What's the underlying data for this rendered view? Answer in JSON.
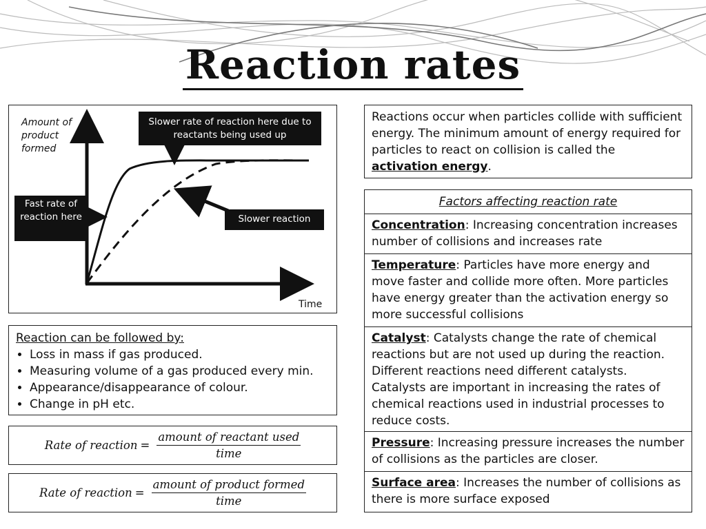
{
  "title": "Reaction rates",
  "graph": {
    "y_axis_label": "Amount of product formed",
    "x_axis_label": "Time",
    "callout_top": "Slower rate of reaction here due to reactants being used up",
    "callout_left": "Fast rate of reaction here",
    "callout_slower": "Slower reaction"
  },
  "intro": {
    "text": "Reactions occur when particles collide with sufficient energy. The minimum amount of energy required for particles to react on collision is called the ",
    "term": "activation energy",
    "end": "."
  },
  "factors": {
    "heading": "Factors affecting reaction rate",
    "items": [
      {
        "term": "Concentration",
        "text": ": Increasing concentration increases number of collisions and increases rate"
      },
      {
        "term": "Temperature",
        "text": ": Particles have more energy and move faster and collide more often. More particles have energy greater than the activation  energy so more successful collisions"
      },
      {
        "term": "Catalyst",
        "text": ": Catalysts change the rate of chemical reactions but are not used up during the reaction. Different reactions need different catalysts. Catalysts are important in increasing the rates of chemical reactions used in industrial processes to reduce costs."
      },
      {
        "term": "Pressure",
        "text": ": Increasing pressure increases the number of collisions as the particles are closer."
      },
      {
        "term": "Surface area",
        "text": ": Increases the number of collisions as there is more surface exposed"
      }
    ]
  },
  "followed": {
    "heading": "Reaction can be followed by:",
    "items": [
      "Loss in mass if gas produced.",
      "Measuring volume of a gas produced every min.",
      "Appearance/disappearance of colour.",
      "Change in pH etc."
    ]
  },
  "equations": [
    {
      "lhs": "Rate of reaction",
      "sign": "=",
      "numerator": "amount of reactant used",
      "denominator": "time"
    },
    {
      "lhs": "Rate of reaction",
      "sign": "=",
      "numerator": "amount of product formed",
      "denominator": "time"
    }
  ]
}
